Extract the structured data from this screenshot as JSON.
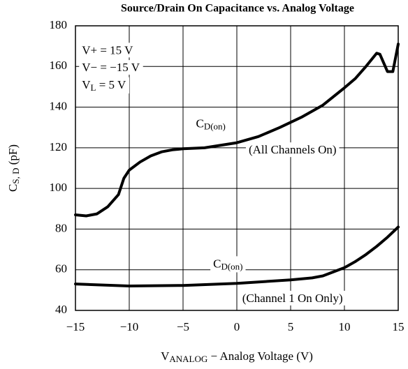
{
  "chart_data": {
    "type": "line",
    "title": "Source/Drain On Capacitance vs. Analog Voltage",
    "x_label": [
      {
        "text": "V"
      },
      {
        "text": "ANALOG",
        "sub": true
      },
      {
        "text": " − Analog Voltage (V)"
      }
    ],
    "y_label": [
      {
        "text": "C"
      },
      {
        "text": "S, D",
        "sub": true
      },
      {
        "text": " (pF)"
      }
    ],
    "xlim": [
      -15,
      15
    ],
    "ylim": [
      40,
      180
    ],
    "xticks": [
      {
        "value": -15,
        "label": "−15"
      },
      {
        "value": -10,
        "label": "−10"
      },
      {
        "value": -5,
        "label": "−5"
      },
      0,
      5,
      10,
      15
    ],
    "yticks": [
      40,
      60,
      80,
      100,
      120,
      140,
      160,
      180
    ],
    "grid": true,
    "color": "#000000",
    "annotations": [
      {
        "x": -14.4,
        "y": 167.5,
        "parts": [
          {
            "text": "V+ = 15 V"
          }
        ]
      },
      {
        "x": -14.4,
        "y": 159,
        "parts": [
          {
            "text": "V− = −15 V"
          }
        ]
      },
      {
        "x": -14.4,
        "y": 150.5,
        "parts": [
          {
            "text": "V"
          },
          {
            "text": "L",
            "sub": true
          },
          {
            "text": " = 5 V"
          }
        ]
      },
      {
        "x": -3.8,
        "y": 131.5,
        "parts": [
          {
            "text": "C"
          },
          {
            "text": "D(on)",
            "sub": true
          }
        ]
      },
      {
        "x": 1.1,
        "y": 118.5,
        "parts": [
          {
            "text": "(All Channels On)"
          }
        ]
      },
      {
        "x": -2.2,
        "y": 62.5,
        "parts": [
          {
            "text": "C"
          },
          {
            "text": "D(on)",
            "sub": true
          }
        ]
      },
      {
        "x": 0.5,
        "y": 45.5,
        "parts": [
          {
            "text": "(Channel 1 On Only)"
          }
        ]
      }
    ],
    "series": [
      {
        "name": "All Channels On",
        "color": "#000000",
        "x": [
          -15,
          -14,
          -13,
          -12,
          -11,
          -10.5,
          -10,
          -9,
          -8,
          -7,
          -6,
          -5,
          -3,
          0,
          2,
          4,
          6,
          8,
          10,
          11,
          12,
          13,
          13.3,
          14,
          14.5,
          15
        ],
        "values": [
          87,
          86.5,
          87.5,
          91,
          97,
          105,
          109,
          113,
          116,
          118,
          119,
          119.5,
          120,
          122.5,
          125.5,
          130,
          135,
          141,
          149.5,
          154,
          160,
          166.5,
          166,
          157.5,
          157.5,
          171
        ]
      },
      {
        "name": "Channel 1 On Only",
        "color": "#000000",
        "x": [
          -15,
          -10,
          -5,
          0,
          5,
          7,
          8,
          9,
          10,
          11,
          12,
          13,
          14,
          15
        ],
        "values": [
          53,
          52,
          52.3,
          53.3,
          55,
          56,
          57,
          59,
          61,
          64,
          67.5,
          71.5,
          76,
          81
        ]
      }
    ]
  }
}
